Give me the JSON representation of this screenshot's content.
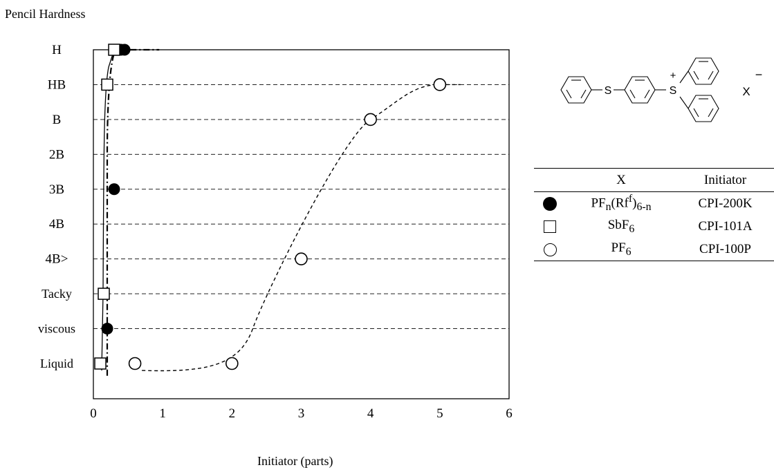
{
  "chart_data": {
    "type": "scatter",
    "title": "Pencil Hardness",
    "xlabel": "Initiator (parts)",
    "ylabel": "",
    "xlim": [
      0,
      6
    ],
    "xticks": [
      "0",
      "1",
      "2",
      "3",
      "4",
      "5",
      "6"
    ],
    "y_categories": [
      "Liquid",
      "viscous",
      "Tacky",
      "4B>",
      "4B",
      "3B",
      "2B",
      "B",
      "HB",
      "H"
    ],
    "grid": "horizontal dashed",
    "series": [
      {
        "name": "PFn(Rf)6-n",
        "initiator": "CPI-200K",
        "marker": "filled-circle",
        "line": "dash-dot",
        "points": [
          [
            0.1,
            "Liquid"
          ],
          [
            0.2,
            "viscous"
          ],
          [
            0.3,
            "3B"
          ],
          [
            0.4,
            "H"
          ],
          [
            0.45,
            "H"
          ]
        ]
      },
      {
        "name": "SbF6",
        "initiator": "CPI-101A",
        "marker": "open-square",
        "line": "solid",
        "points": [
          [
            0.1,
            "Liquid"
          ],
          [
            0.15,
            "Tacky"
          ],
          [
            0.2,
            "HB"
          ],
          [
            0.3,
            "H"
          ]
        ]
      },
      {
        "name": "PF6",
        "initiator": "CPI-100P",
        "marker": "open-circle",
        "line": "dashed",
        "points": [
          [
            0.6,
            "Liquid"
          ],
          [
            2,
            "Liquid"
          ],
          [
            3,
            "4B>"
          ],
          [
            4,
            "B"
          ],
          [
            5,
            "HB"
          ]
        ]
      }
    ],
    "legend": {
      "placement": "right",
      "col_x": "X",
      "col_initiator": "Initiator",
      "rows": [
        {
          "x_main": "PF",
          "x_sub1": "n",
          "x_mid": "(Rf",
          "x_sup": "f",
          "x_close": ")",
          "x_sub2": "6-n",
          "initiator": "CPI-200K"
        },
        {
          "x_main": "SbF",
          "x_sub": "6",
          "initiator": "CPI-101A"
        },
        {
          "x_main": "PF",
          "x_sub": "6",
          "initiator": "CPI-100P"
        }
      ]
    },
    "structure": {
      "s1": "S",
      "s2": "S",
      "plus": "+",
      "anion": "X",
      "minus": "−"
    }
  }
}
